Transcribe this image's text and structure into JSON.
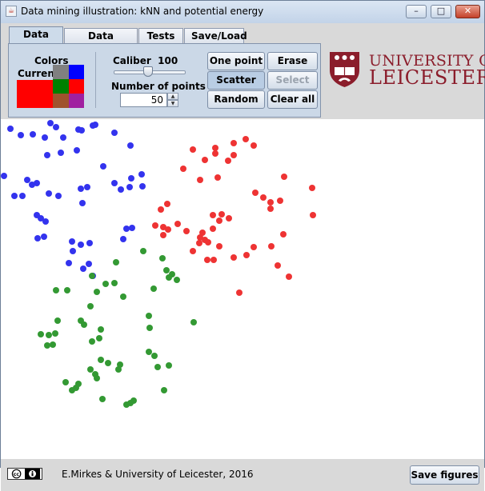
{
  "window": {
    "title": "Data mining illustration: kNN and potential energy",
    "minimize_glyph": "–",
    "maximize_glyph": "□",
    "close_glyph": "✕"
  },
  "tabs": [
    {
      "label": "Data set",
      "active": true
    },
    {
      "label": "Data reduce",
      "active": false
    },
    {
      "label": "Tests",
      "active": false
    },
    {
      "label": "Save/Load",
      "active": false
    }
  ],
  "colors_panel": {
    "title": "Colors",
    "current_label": "Current",
    "current_color": "#ff0000",
    "palette": [
      "#808080",
      "#0000ff",
      "#008000",
      "#ff0000",
      "#a0522d",
      "#a020a0"
    ]
  },
  "caliber": {
    "label": "Caliber",
    "value": "100",
    "slider_fraction": 0.42
  },
  "number_of_points": {
    "label": "Number of points",
    "value": "50"
  },
  "buttons": {
    "one_point": "One point",
    "erase": "Erase",
    "scatter": "Scatter",
    "select": "Select",
    "random": "Random",
    "clear_all": "Clear all"
  },
  "logo": {
    "line1": "UNIVERSITY OF",
    "line2": "LEICESTER",
    "color": "#8b1d2b"
  },
  "footer": {
    "credit": "E.Mirkes & University of Leicester, 2016",
    "save_button": "Save figures",
    "license_icon": "cc-by-icon"
  },
  "points": {
    "blue_color": "#3333ee",
    "red_color": "#ee3333",
    "green_color": "#339933",
    "blue": [
      [
        12,
        160
      ],
      [
        25,
        168
      ],
      [
        40,
        167
      ],
      [
        62,
        153
      ],
      [
        69,
        158
      ],
      [
        55,
        171
      ],
      [
        78,
        171
      ],
      [
        97,
        161
      ],
      [
        115,
        156
      ],
      [
        101,
        162
      ],
      [
        118,
        155
      ],
      [
        142,
        165
      ],
      [
        162,
        181
      ],
      [
        58,
        193
      ],
      [
        75,
        190
      ],
      [
        95,
        187
      ],
      [
        128,
        207
      ],
      [
        163,
        222
      ],
      [
        176,
        217
      ],
      [
        4,
        219
      ],
      [
        33,
        224
      ],
      [
        45,
        228
      ],
      [
        17,
        244
      ],
      [
        27,
        244
      ],
      [
        60,
        241
      ],
      [
        72,
        244
      ],
      [
        100,
        235
      ],
      [
        108,
        233
      ],
      [
        142,
        228
      ],
      [
        150,
        236
      ],
      [
        161,
        233
      ],
      [
        177,
        232
      ],
      [
        102,
        253
      ],
      [
        45,
        268
      ],
      [
        50,
        272
      ],
      [
        56,
        276
      ],
      [
        46,
        297
      ],
      [
        54,
        295
      ],
      [
        89,
        301
      ],
      [
        100,
        305
      ],
      [
        111,
        303
      ],
      [
        90,
        313
      ],
      [
        157,
        285
      ],
      [
        164,
        284
      ],
      [
        153,
        298
      ],
      [
        85,
        328
      ],
      [
        110,
        329
      ],
      [
        103,
        335
      ],
      [
        39,
        230
      ],
      [
        115,
        344
      ]
    ],
    "red": [
      [
        240,
        186
      ],
      [
        268,
        184
      ],
      [
        268,
        191
      ],
      [
        291,
        178
      ],
      [
        306,
        173
      ],
      [
        316,
        181
      ],
      [
        255,
        199
      ],
      [
        284,
        200
      ],
      [
        291,
        193
      ],
      [
        228,
        210
      ],
      [
        249,
        224
      ],
      [
        271,
        221
      ],
      [
        354,
        220
      ],
      [
        389,
        234
      ],
      [
        208,
        254
      ],
      [
        200,
        261
      ],
      [
        318,
        240
      ],
      [
        328,
        246
      ],
      [
        337,
        252
      ],
      [
        349,
        250
      ],
      [
        337,
        260
      ],
      [
        265,
        268
      ],
      [
        276,
        267
      ],
      [
        285,
        272
      ],
      [
        273,
        275
      ],
      [
        390,
        268
      ],
      [
        203,
        283
      ],
      [
        209,
        286
      ],
      [
        232,
        288
      ],
      [
        252,
        290
      ],
      [
        265,
        285
      ],
      [
        248,
        303
      ],
      [
        240,
        313
      ],
      [
        273,
        307
      ],
      [
        353,
        292
      ],
      [
        338,
        307
      ],
      [
        316,
        308
      ],
      [
        307,
        318
      ],
      [
        291,
        321
      ],
      [
        266,
        324
      ],
      [
        258,
        324
      ],
      [
        346,
        331
      ],
      [
        360,
        345
      ],
      [
        298,
        365
      ],
      [
        193,
        281
      ],
      [
        203,
        293
      ],
      [
        221,
        279
      ],
      [
        249,
        296
      ],
      [
        255,
        299
      ],
      [
        259,
        302
      ]
    ],
    "green": [
      [
        178,
        313
      ],
      [
        144,
        327
      ],
      [
        202,
        322
      ],
      [
        207,
        337
      ],
      [
        214,
        342
      ],
      [
        220,
        349
      ],
      [
        210,
        346
      ],
      [
        114,
        344
      ],
      [
        131,
        354
      ],
      [
        142,
        353
      ],
      [
        191,
        360
      ],
      [
        69,
        362
      ],
      [
        83,
        362
      ],
      [
        120,
        364
      ],
      [
        153,
        370
      ],
      [
        112,
        382
      ],
      [
        185,
        394
      ],
      [
        241,
        402
      ],
      [
        71,
        400
      ],
      [
        50,
        417
      ],
      [
        60,
        418
      ],
      [
        68,
        416
      ],
      [
        100,
        400
      ],
      [
        104,
        405
      ],
      [
        125,
        411
      ],
      [
        186,
        409
      ],
      [
        58,
        431
      ],
      [
        65,
        430
      ],
      [
        123,
        422
      ],
      [
        114,
        426
      ],
      [
        185,
        439
      ],
      [
        192,
        444
      ],
      [
        125,
        449
      ],
      [
        134,
        453
      ],
      [
        147,
        461
      ],
      [
        210,
        456
      ],
      [
        196,
        458
      ],
      [
        112,
        461
      ],
      [
        118,
        467
      ],
      [
        97,
        479
      ],
      [
        94,
        484
      ],
      [
        89,
        487
      ],
      [
        81,
        477
      ],
      [
        127,
        498
      ],
      [
        157,
        505
      ],
      [
        166,
        500
      ],
      [
        162,
        503
      ],
      [
        204,
        487
      ],
      [
        120,
        472
      ],
      [
        149,
        455
      ]
    ]
  }
}
